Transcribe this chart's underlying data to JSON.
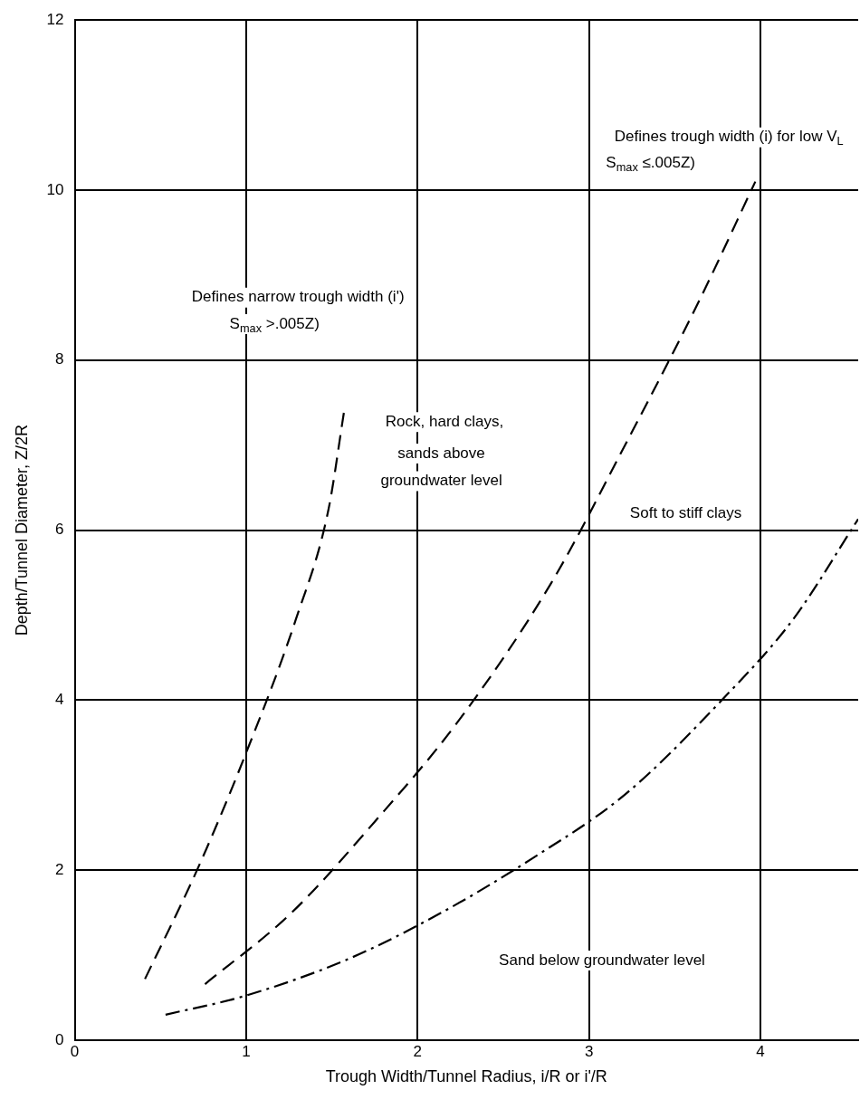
{
  "chart_data": {
    "type": "line",
    "xlabel": "Trough Width/Tunnel Radius, i/R or i'/R",
    "ylabel": "Depth/Tunnel Diameter, Z/2R",
    "xlim": [
      0,
      4.57
    ],
    "xticks": [
      0,
      1,
      2,
      3,
      4
    ],
    "ylim": [
      0,
      12
    ],
    "yticks": [
      0,
      2,
      4,
      6,
      8,
      10,
      12
    ],
    "grid": true,
    "legend": false,
    "marker": "none",
    "series": [
      {
        "color": "#000000",
        "line_style": "dashed",
        "x": [
          0.41,
          0.72,
          0.99,
          1.29,
          1.48,
          1.57
        ],
        "values": [
          0.72,
          2.03,
          3.33,
          4.95,
          6.24,
          7.38
        ]
      },
      {
        "color": "#000000",
        "line_style": "dashed",
        "x": [
          0.76,
          1.26,
          1.75,
          2.24,
          2.78,
          3.21,
          3.65,
          3.97
        ],
        "values": [
          0.66,
          1.49,
          2.57,
          3.76,
          5.38,
          7.0,
          8.73,
          10.1
        ]
      },
      {
        "color": "#000000",
        "line_style": "dashdot",
        "x": [
          0.53,
          0.99,
          1.59,
          2.13,
          2.67,
          3.21,
          3.76,
          4.19,
          4.57
        ],
        "values": [
          0.3,
          0.52,
          0.95,
          1.49,
          2.14,
          2.89,
          3.97,
          4.95,
          6.13
        ]
      }
    ],
    "annotations": [
      "Defines trough width (i) for low V$_{L}$",
      "S$_{max}$ ≤.005Z)",
      "Defines narrow trough width (i')",
      "S$_{max}$ >.005Z)",
      "Rock, hard clays,",
      "sands above",
      "groundwater level",
      "Soft to stiff clays",
      "Sand below groundwater level"
    ]
  }
}
